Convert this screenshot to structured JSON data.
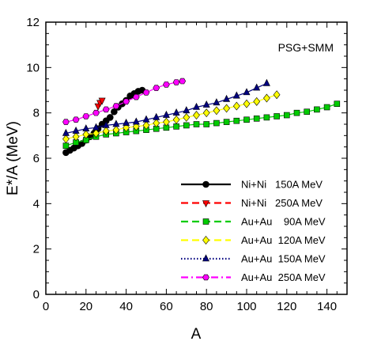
{
  "chart_data": {
    "type": "scatter",
    "xlabel": "A",
    "ylabel": "E*/A (MeV)",
    "xlim": [
      0,
      150
    ],
    "ylim": [
      0,
      12
    ],
    "xticks": [
      0,
      20,
      40,
      60,
      80,
      100,
      120,
      140
    ],
    "yticks": [
      0,
      2,
      4,
      6,
      8,
      10,
      12
    ],
    "grid": false,
    "legend_position": "bottom-right",
    "annotation": "PSG+SMM",
    "series": [
      {
        "name": "Ni+Ni   150A MeV",
        "color": "#000000",
        "dash": "solid",
        "marker": "circle",
        "x": [
          10,
          12,
          14,
          16,
          18,
          20,
          22,
          24,
          26,
          28,
          30,
          32,
          34,
          36,
          38,
          40,
          42,
          44,
          46,
          48
        ],
        "y": [
          6.25,
          6.35,
          6.45,
          6.55,
          6.65,
          6.8,
          6.95,
          7.1,
          7.3,
          7.5,
          7.65,
          7.8,
          8.05,
          8.25,
          8.4,
          8.55,
          8.75,
          8.85,
          8.95,
          9.0
        ]
      },
      {
        "name": "Ni+Ni   250A MeV",
        "color": "#ff0000",
        "dash": "dashed",
        "marker": "triangle-down",
        "x": [
          26,
          27,
          28
        ],
        "y": [
          8.3,
          8.45,
          8.55
        ]
      },
      {
        "name": "Au+Au    90A MeV",
        "color": "#00cc00",
        "dash": "dashed",
        "marker": "square",
        "x": [
          10,
          15,
          20,
          25,
          30,
          35,
          40,
          45,
          50,
          55,
          60,
          65,
          70,
          75,
          80,
          85,
          90,
          95,
          100,
          105,
          110,
          115,
          120,
          125,
          130,
          135,
          140,
          145
        ],
        "y": [
          6.55,
          6.7,
          6.8,
          6.95,
          7.05,
          7.1,
          7.15,
          7.2,
          7.25,
          7.3,
          7.35,
          7.4,
          7.45,
          7.5,
          7.5,
          7.55,
          7.6,
          7.65,
          7.7,
          7.75,
          7.8,
          7.85,
          7.9,
          8.0,
          8.05,
          8.15,
          8.25,
          8.4
        ]
      },
      {
        "name": "Au+Au  120A MeV",
        "color": "#ffff00",
        "dash": "dashed",
        "marker": "diamond",
        "x": [
          10,
          15,
          20,
          25,
          30,
          35,
          40,
          45,
          50,
          55,
          60,
          65,
          70,
          75,
          80,
          85,
          90,
          95,
          100,
          105,
          110,
          115
        ],
        "y": [
          6.85,
          6.95,
          7.05,
          7.1,
          7.2,
          7.25,
          7.35,
          7.4,
          7.45,
          7.55,
          7.6,
          7.7,
          7.8,
          7.9,
          8.0,
          8.1,
          8.2,
          8.3,
          8.4,
          8.5,
          8.65,
          8.8
        ]
      },
      {
        "name": "Au+Au  150A MeV",
        "color": "#000080",
        "dash": "dotted",
        "marker": "triangle-up",
        "x": [
          10,
          15,
          20,
          25,
          30,
          35,
          40,
          45,
          50,
          55,
          60,
          65,
          70,
          75,
          80,
          85,
          90,
          95,
          100,
          105,
          110
        ],
        "y": [
          7.1,
          7.2,
          7.3,
          7.35,
          7.45,
          7.5,
          7.55,
          7.6,
          7.7,
          7.8,
          7.9,
          8.0,
          8.1,
          8.25,
          8.35,
          8.45,
          8.6,
          8.75,
          8.9,
          9.1,
          9.3
        ]
      },
      {
        "name": "Au+Au  250A MeV",
        "color": "#ff00ff",
        "dash": "dashdot",
        "marker": "hexagon",
        "x": [
          10,
          15,
          20,
          25,
          30,
          35,
          40,
          45,
          50,
          55,
          60,
          65,
          68
        ],
        "y": [
          7.6,
          7.7,
          7.85,
          8.0,
          8.15,
          8.3,
          8.5,
          8.7,
          8.9,
          9.1,
          9.25,
          9.35,
          9.4
        ]
      }
    ]
  }
}
